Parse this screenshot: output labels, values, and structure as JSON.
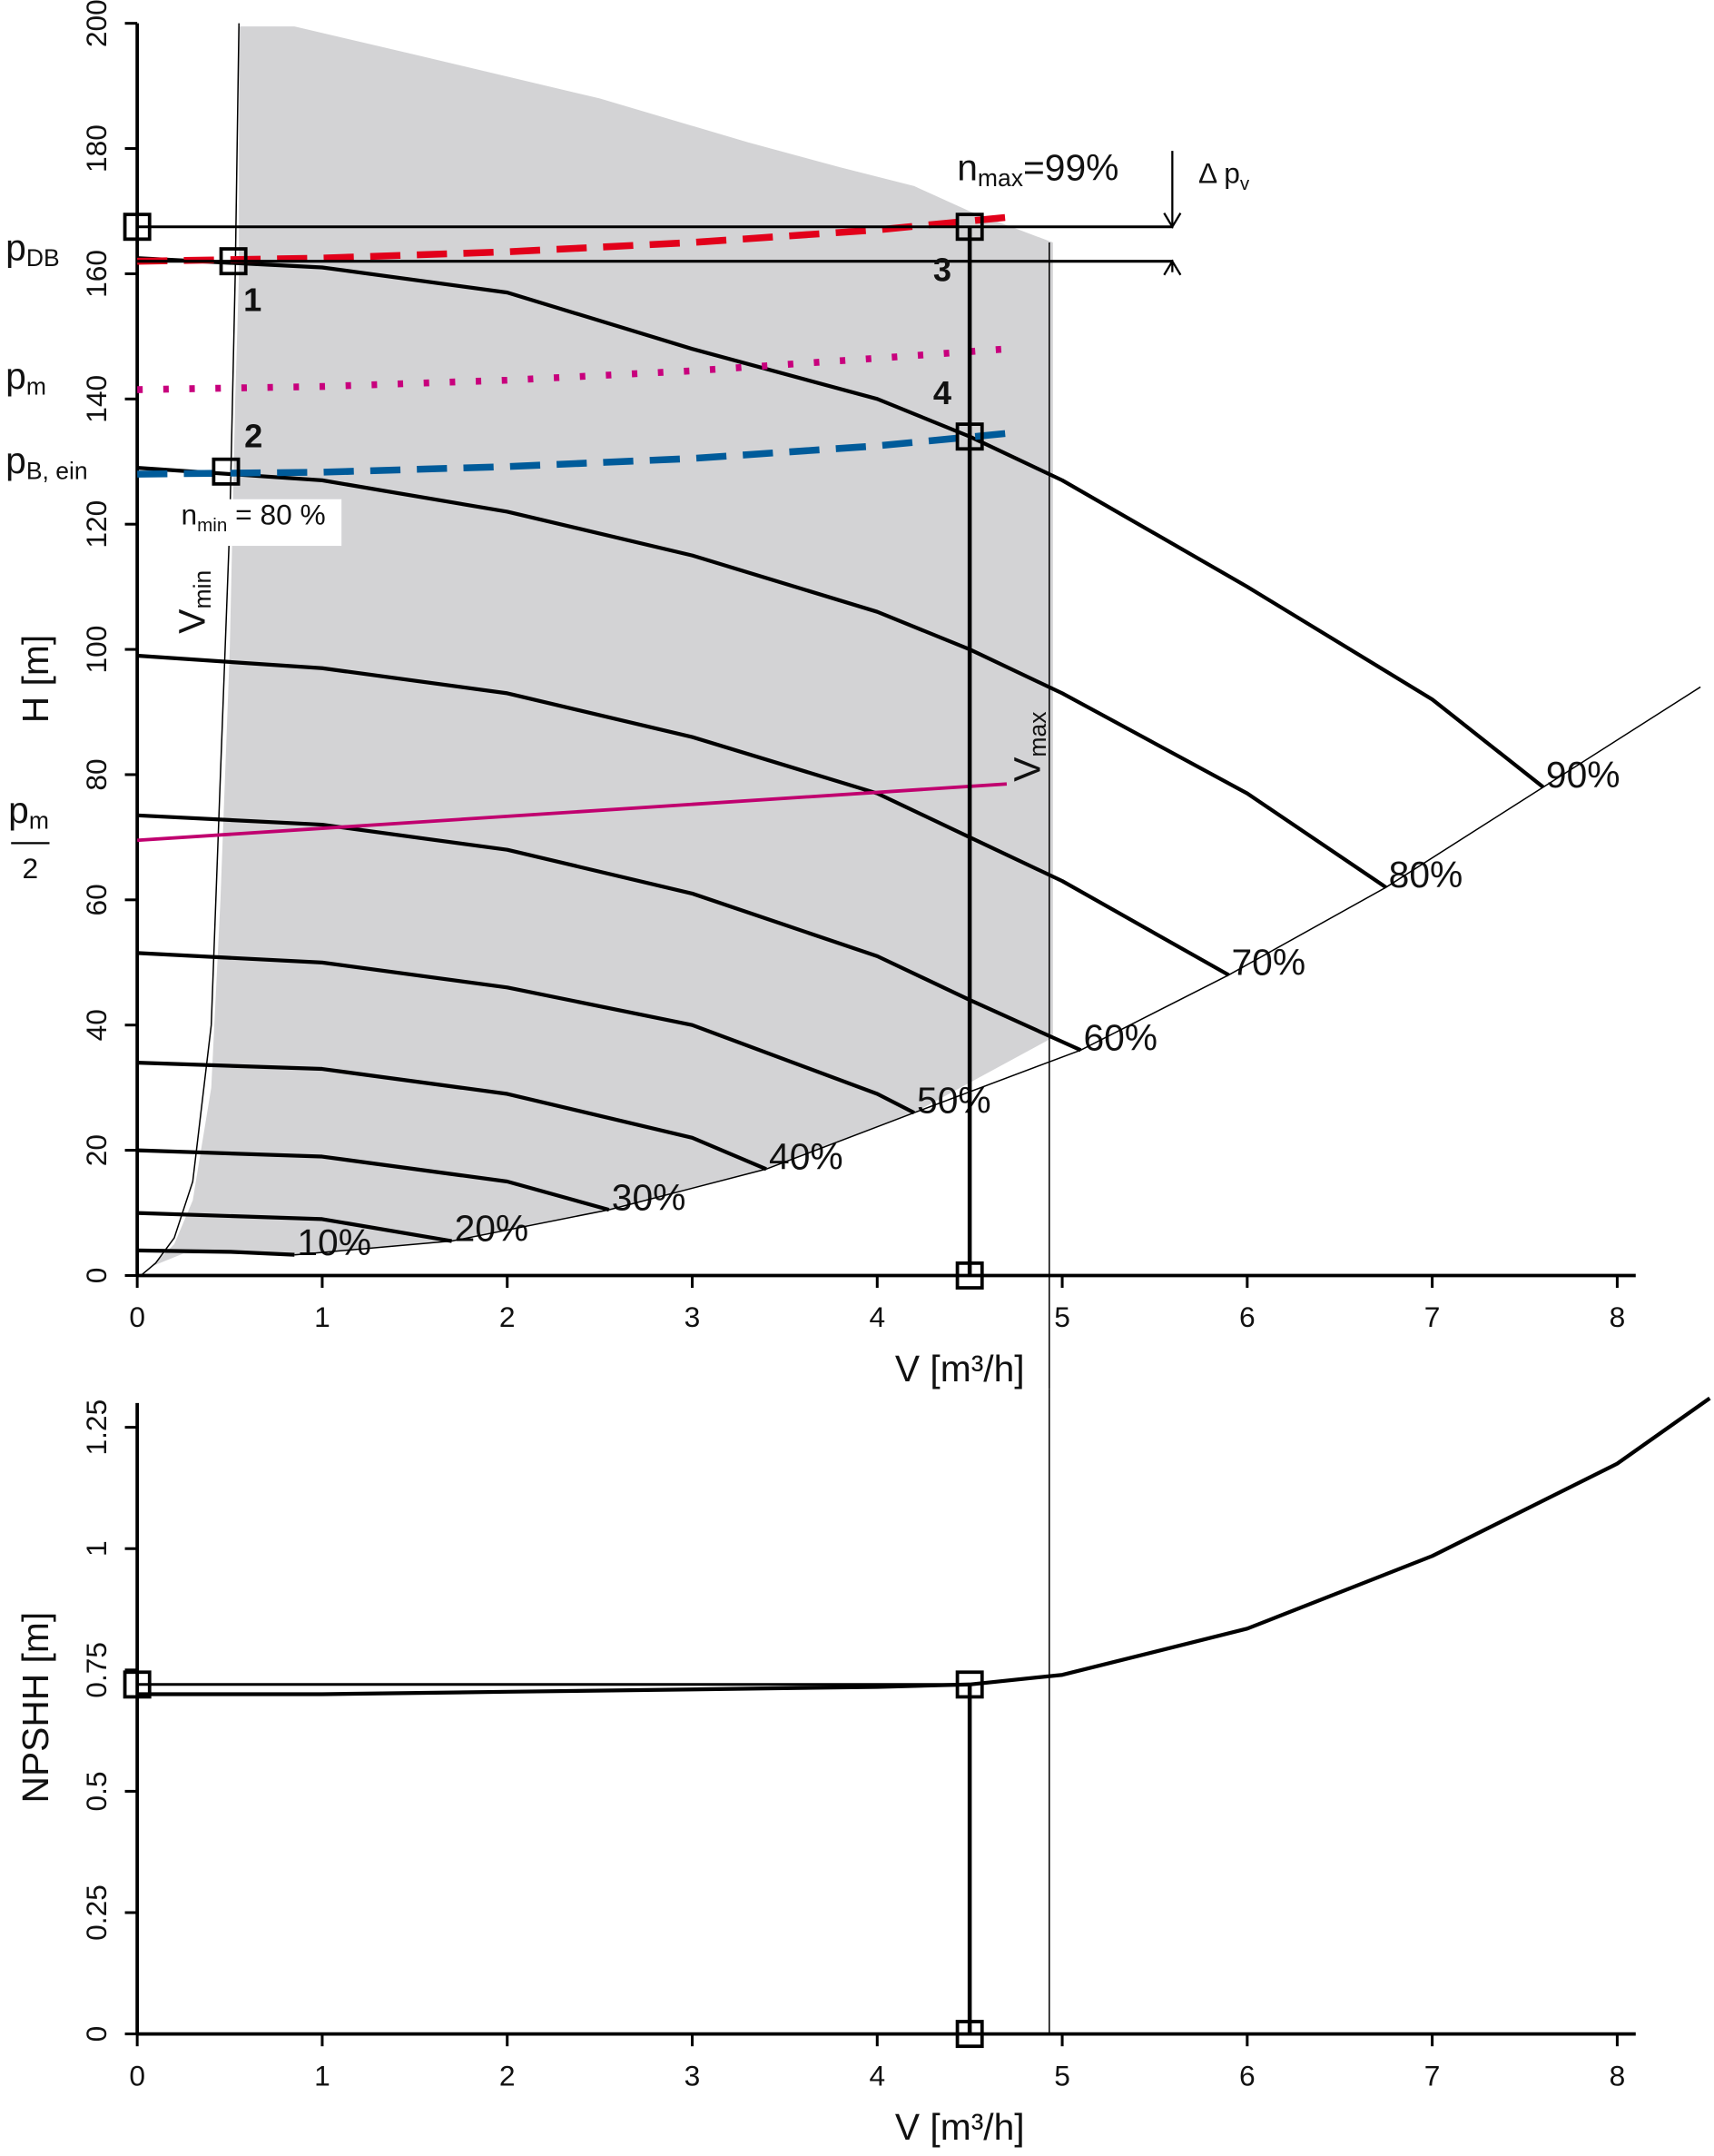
{
  "chart_data": [
    {
      "type": "line",
      "x_label": "V [m³/h]",
      "y_label": "H [m]",
      "xlim": [
        0,
        8.1
      ],
      "ylim": [
        0,
        200
      ],
      "xticks": [
        0,
        1,
        2,
        3,
        4,
        5,
        6,
        7,
        8
      ],
      "yticks": [
        0,
        20,
        40,
        60,
        80,
        100,
        120,
        140,
        160,
        180,
        200
      ],
      "operating_range": {
        "color": "#d3d3d5",
        "x": [
          0.08,
          0.2,
          0.3,
          0.4,
          0.45,
          0.5,
          0.53,
          0.55,
          0.55,
          0.85,
          1.5,
          2.5,
          3.3,
          3.8,
          4.2,
          4.5,
          4.95,
          4.95,
          4.2,
          3.4,
          2.55,
          1.7,
          0.85,
          0.25
        ],
        "values": [
          1.5,
          5,
          12,
          30,
          60,
          100,
          140,
          160,
          199.5,
          199.5,
          195,
          188,
          181,
          177,
          174,
          170,
          165,
          38,
          26,
          17,
          10.5,
          5.5,
          3.3,
          3.5
        ]
      },
      "series": [
        {
          "name": "10%",
          "color": "#000000",
          "x": [
            0,
            0.5,
            0.85
          ],
          "values": [
            4,
            3.8,
            3.3
          ]
        },
        {
          "name": "20%",
          "color": "#000000",
          "x": [
            0,
            1,
            1.7
          ],
          "values": [
            10,
            9,
            5.5
          ]
        },
        {
          "name": "30%",
          "color": "#000000",
          "x": [
            0,
            1,
            2,
            2.55
          ],
          "values": [
            20,
            19,
            15,
            10.5
          ]
        },
        {
          "name": "40%",
          "color": "#000000",
          "x": [
            0,
            1,
            2,
            3,
            3.4
          ],
          "values": [
            34,
            33,
            29,
            22,
            17
          ]
        },
        {
          "name": "50%",
          "color": "#000000",
          "x": [
            0,
            1,
            2,
            3,
            4,
            4.2
          ],
          "values": [
            51.5,
            50,
            46,
            40,
            29,
            26
          ]
        },
        {
          "name": "60%",
          "color": "#000000",
          "x": [
            0,
            1,
            2,
            3,
            4,
            4.5,
            5.1
          ],
          "values": [
            73.5,
            72,
            68,
            61,
            51,
            44,
            36
          ]
        },
        {
          "name": "70%",
          "color": "#000000",
          "x": [
            0,
            1,
            2,
            3,
            4,
            4.5,
            5,
            5.9
          ],
          "values": [
            99,
            97,
            93,
            86,
            77,
            70,
            63,
            48
          ]
        },
        {
          "name": "80%",
          "color": "#000000",
          "x": [
            0,
            1,
            2,
            3,
            4,
            4.5,
            5,
            6,
            6.75
          ],
          "values": [
            129,
            127,
            122,
            115,
            106,
            100,
            93,
            77,
            62
          ]
        },
        {
          "name": "90%",
          "color": "#000000",
          "x": [
            0,
            1,
            2,
            3,
            4,
            4.5,
            5,
            6,
            7,
            7.6
          ],
          "values": [
            162.5,
            161,
            157,
            148,
            140,
            134,
            127,
            110,
            92,
            78
          ]
        }
      ],
      "v_min": {
        "label": {
          "main": "V",
          "sub": "min"
        },
        "x": [
          0.02,
          0.1,
          0.2,
          0.3,
          0.4,
          0.45,
          0.5,
          0.53,
          0.55
        ],
        "values": [
          0,
          2,
          6,
          15,
          40,
          80,
          120,
          160,
          200
        ]
      },
      "v_max": {
        "label": {
          "main": "V",
          "sub": "max"
        },
        "x": 4.93,
        "values": [
          165,
          0
        ]
      },
      "pressure_lines": [
        {
          "label": {
            "main": "p",
            "sub": "DB"
          },
          "color": "#e2001a",
          "style": "dashed",
          "x": [
            0,
            1,
            2,
            3,
            4,
            4.7
          ],
          "values": [
            162,
            162.5,
            163.5,
            165,
            167,
            169
          ]
        },
        {
          "label": {
            "main": "p",
            "sub": "m"
          },
          "color": "#c8007d",
          "style": "dotted",
          "x": [
            0,
            1,
            2,
            3,
            4,
            4.7
          ],
          "values": [
            141.5,
            142,
            143,
            144.5,
            146.5,
            148
          ]
        },
        {
          "label": {
            "main": "p",
            "sub": "B, ein"
          },
          "color": "#005b9a",
          "style": "dashed",
          "x": [
            0,
            1,
            2,
            3,
            4,
            4.7
          ],
          "values": [
            128,
            128.3,
            129.2,
            130.5,
            132.5,
            134.5
          ]
        },
        {
          "label": {
            "numerator": {
              "main": "p",
              "sub": "m"
            },
            "denominator": "2"
          },
          "color": "#c0006f",
          "style": "solid",
          "x": [
            0,
            4.7
          ],
          "values": [
            69.5,
            78.5
          ]
        }
      ],
      "guide_lines": [
        {
          "x": [
            0,
            5.6
          ],
          "values": [
            167.5,
            167.5
          ]
        },
        {
          "x": [
            0,
            5.6
          ],
          "values": [
            162,
            162
          ]
        },
        {
          "x": [
            4.5,
            4.5
          ],
          "values": [
            167.5,
            0
          ]
        }
      ],
      "markers": [
        {
          "x": 0,
          "value": 167.5
        },
        {
          "x": 4.5,
          "value": 167.5
        },
        {
          "x": 0.52,
          "value": 162
        },
        {
          "x": 0.48,
          "value": 128.4
        },
        {
          "x": 4.5,
          "value": 134
        },
        {
          "x": 4.5,
          "value": 0
        }
      ],
      "point_labels": [
        {
          "label": "1",
          "x": 0.52,
          "value": 162,
          "position": "below-right"
        },
        {
          "label": "2",
          "x": 0.48,
          "value": 128.4,
          "position": "above-right"
        },
        {
          "label": "3",
          "x": 4.5,
          "value": 162,
          "position": "left"
        },
        {
          "label": "4",
          "x": 4.5,
          "value": 134,
          "position": "above-left"
        }
      ],
      "n_max": {
        "main": "n",
        "sub": "max",
        "rest": "=99%"
      },
      "n_min": {
        "main": "n",
        "sub": "min",
        "rest": " = 80 %"
      },
      "delta_pv": {
        "main": "Δ p",
        "sub": "v"
      }
    },
    {
      "type": "line",
      "x_label": "V [m³/h]",
      "y_label": "NPSHH [m]",
      "xlim": [
        0,
        8.1
      ],
      "ylim": [
        0,
        1.3
      ],
      "xticks": [
        0,
        1,
        2,
        3,
        4,
        5,
        6,
        7,
        8
      ],
      "yticks": [
        0,
        0.25,
        0.5,
        0.75,
        1,
        1.25
      ],
      "series": [
        {
          "color": "#000000",
          "x": [
            0,
            1,
            2,
            3,
            4,
            4.5,
            5,
            6,
            7,
            8,
            8.5
          ],
          "values": [
            0.7,
            0.7,
            0.705,
            0.71,
            0.715,
            0.72,
            0.74,
            0.835,
            0.985,
            1.175,
            1.31
          ]
        }
      ],
      "v_max": {
        "x": 4.93,
        "values": [
          0
        ]
      },
      "guide_lines": [
        {
          "x": [
            0,
            4.5
          ],
          "values": [
            0.72,
            0.72
          ]
        },
        {
          "x": [
            4.5,
            4.5
          ],
          "values": [
            0.72,
            0
          ]
        }
      ],
      "markers": [
        {
          "x": 0,
          "value": 0.72
        },
        {
          "x": 4.5,
          "value": 0.72
        },
        {
          "x": 4.5,
          "value": 0
        }
      ]
    }
  ]
}
